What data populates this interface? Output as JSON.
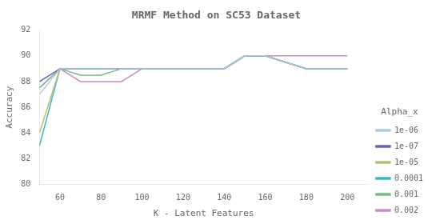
{
  "chart_data": {
    "type": "line",
    "title": "MRMF Method on SC53 Dataset",
    "xlabel": "K - Latent Features",
    "ylabel": "Accuracy",
    "legend_title": "Alpha_x",
    "legend": "lower right",
    "grid": false,
    "x": [
      50,
      60,
      70,
      80,
      90,
      100,
      120,
      140,
      150,
      160,
      180,
      200
    ],
    "xlim": [
      50,
      210
    ],
    "ylim": [
      80,
      92
    ],
    "xticks": [
      60,
      80,
      100,
      120,
      140,
      160,
      180,
      200
    ],
    "yticks": [
      80,
      82,
      84,
      86,
      88,
      90,
      92
    ],
    "series": [
      {
        "name": "1e-06",
        "color": "#aaccdd",
        "values": [
          87.0,
          89.0,
          89.0,
          89.0,
          89.0,
          89.0,
          89.0,
          89.0,
          90.0,
          90.0,
          89.0,
          89.0
        ]
      },
      {
        "name": "1e-07",
        "color": "#6666bb",
        "values": [
          88.0,
          89.0,
          89.0,
          89.0,
          89.0,
          89.0,
          89.0,
          89.0,
          90.0,
          90.0,
          89.0,
          89.0
        ]
      },
      {
        "name": "1e-05",
        "color": "#bbbb77",
        "values": [
          84.0,
          89.0,
          89.0,
          89.0,
          89.0,
          89.0,
          89.0,
          89.0,
          90.0,
          90.0,
          89.0,
          89.0
        ]
      },
      {
        "name": "0.0001",
        "color": "#33bbbb",
        "values": [
          83.0,
          89.0,
          89.0,
          89.0,
          89.0,
          89.0,
          89.0,
          89.0,
          90.0,
          90.0,
          89.0,
          89.0
        ]
      },
      {
        "name": "0.001",
        "color": "#77bb88",
        "values": [
          87.5,
          89.0,
          88.5,
          88.5,
          89.0,
          89.0,
          89.0,
          89.0,
          90.0,
          90.0,
          89.0,
          89.0
        ]
      },
      {
        "name": "0.002",
        "color": "#cc88cc",
        "values": [
          87.5,
          89.0,
          88.0,
          88.0,
          88.0,
          89.0,
          89.0,
          89.0,
          90.0,
          90.0,
          90.0,
          90.0
        ]
      }
    ]
  }
}
